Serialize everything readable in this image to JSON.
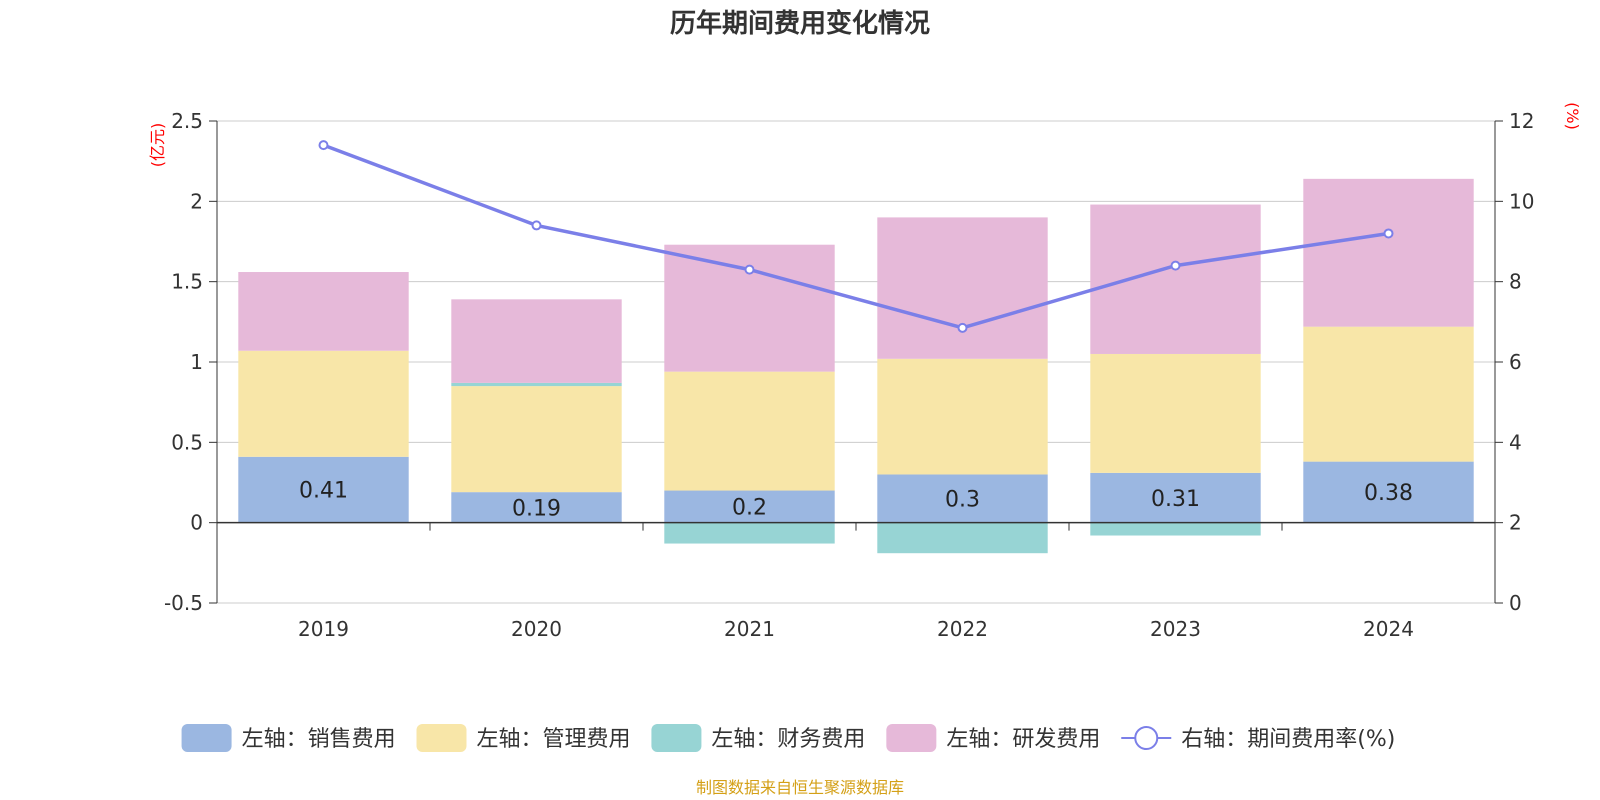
{
  "chart_data": {
    "type": "bar",
    "title": "历年期间费用变化情况",
    "categories": [
      "2019",
      "2020",
      "2021",
      "2022",
      "2023",
      "2024"
    ],
    "left_axis": {
      "unit": "(亿元)",
      "ylim": [
        -0.5,
        2.5
      ],
      "ticks": [
        "2.5",
        "2",
        "1.5",
        "1",
        "0.5",
        "0",
        "-0.5"
      ]
    },
    "right_axis": {
      "unit": "(%)",
      "ylim": [
        0,
        12
      ],
      "ticks": [
        "12",
        "10",
        "8",
        "6",
        "4",
        "2",
        "0"
      ]
    },
    "series": [
      {
        "name": "左轴：销售费用",
        "color": "#9bb7e1",
        "axis": "left",
        "kind": "bar",
        "values": [
          0.41,
          0.19,
          0.2,
          0.3,
          0.31,
          0.38
        ],
        "labels": [
          "0.41",
          "0.19",
          "0.2",
          "0.3",
          "0.31",
          "0.38"
        ]
      },
      {
        "name": "左轴：管理费用",
        "color": "#f8e6a8",
        "axis": "left",
        "kind": "bar",
        "values": [
          0.66,
          0.66,
          0.74,
          0.72,
          0.74,
          0.84
        ]
      },
      {
        "name": "左轴：财务费用",
        "color": "#97d4d4",
        "axis": "left",
        "kind": "bar",
        "values": [
          0.0,
          0.02,
          -0.13,
          -0.19,
          -0.08,
          0.0
        ]
      },
      {
        "name": "左轴：研发费用",
        "color": "#e6b9d9",
        "axis": "left",
        "kind": "bar",
        "values": [
          0.49,
          0.52,
          0.79,
          0.88,
          0.93,
          0.92
        ]
      },
      {
        "name": "右轴：期间费用率(%)",
        "color": "#7b7fe8",
        "axis": "right",
        "kind": "line",
        "values": [
          11.4,
          9.4,
          8.3,
          6.85,
          8.4,
          9.2
        ]
      }
    ],
    "legend_position": "bottom",
    "source": "制图数据来自恒生聚源数据库"
  }
}
